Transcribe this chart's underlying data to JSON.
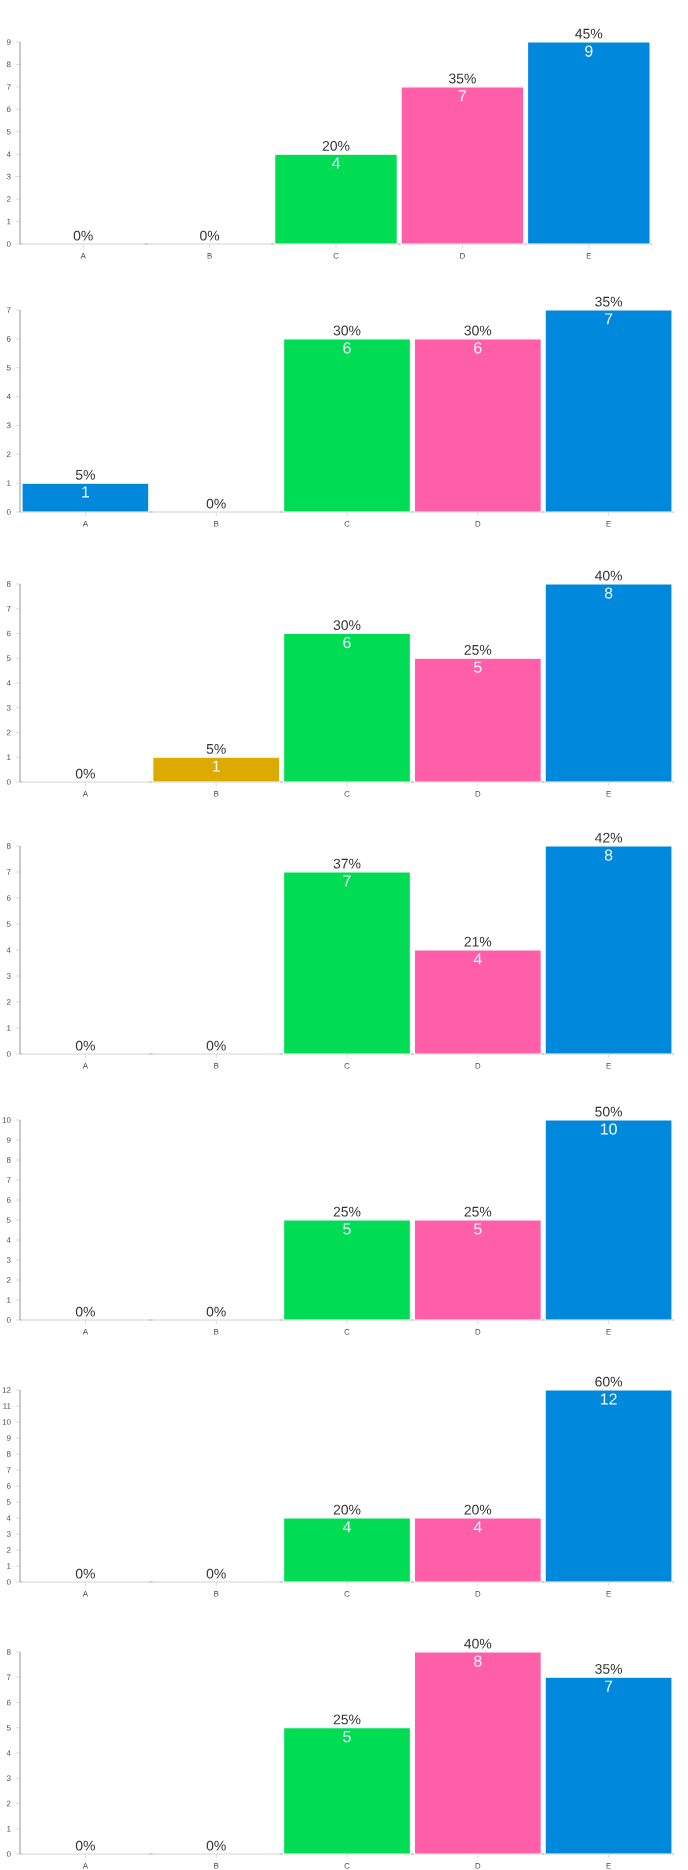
{
  "chart_data": [
    {
      "type": "bar",
      "categories": [
        "A",
        "B",
        "C",
        "D",
        "E"
      ],
      "values": [
        0,
        0,
        4,
        7,
        9
      ],
      "colors": [
        "#0088dd",
        "#ddaa00",
        "#00dd55",
        "#ff5fa8",
        "#0088dd"
      ],
      "value_labels": [
        null,
        null,
        "4",
        "7",
        "9"
      ],
      "ylim": [
        0,
        9
      ],
      "yticks": [
        0,
        1,
        2,
        3,
        4,
        5,
        6,
        7,
        8,
        9
      ],
      "annotations": [
        {
          "text": "0%",
          "x": "A",
          "y": 0
        },
        {
          "text": "0%",
          "x": "B",
          "y": 0
        },
        {
          "text": "20%",
          "x": "C",
          "y": 4
        },
        {
          "text": "35%",
          "x": "D",
          "y": 7
        },
        {
          "text": "45%",
          "x": "E",
          "y": 9
        }
      ]
    },
    {
      "type": "bar",
      "categories": [
        "A",
        "B",
        "C",
        "D",
        "E"
      ],
      "values": [
        1,
        0,
        6,
        6,
        7
      ],
      "colors": [
        "#0088dd",
        "#ddaa00",
        "#00dd55",
        "#ff5fa8",
        "#0088dd"
      ],
      "value_labels": [
        "1",
        null,
        "6",
        "6",
        "7"
      ],
      "ylim": [
        0,
        7
      ],
      "yticks": [
        0,
        1,
        2,
        3,
        4,
        5,
        6,
        7
      ],
      "annotations": [
        {
          "text": "5%",
          "x": "A",
          "y": 1
        },
        {
          "text": "0%",
          "x": "B",
          "y": 0
        },
        {
          "text": "30%",
          "x": "C",
          "y": 6
        },
        {
          "text": "30%",
          "x": "D",
          "y": 6
        },
        {
          "text": "35%",
          "x": "E",
          "y": 7
        }
      ]
    },
    {
      "type": "bar",
      "categories": [
        "A",
        "B",
        "C",
        "D",
        "E"
      ],
      "values": [
        0,
        1,
        6,
        5,
        8
      ],
      "colors": [
        "#0088dd",
        "#ddaa00",
        "#00dd55",
        "#ff5fa8",
        "#0088dd"
      ],
      "value_labels": [
        null,
        "1",
        "6",
        "5",
        "8"
      ],
      "ylim": [
        0,
        8
      ],
      "yticks": [
        0,
        1,
        2,
        3,
        4,
        5,
        6,
        7,
        8
      ],
      "annotations": [
        {
          "text": "0%",
          "x": "A",
          "y": 0
        },
        {
          "text": "5%",
          "x": "B",
          "y": 1
        },
        {
          "text": "30%",
          "x": "C",
          "y": 6
        },
        {
          "text": "25%",
          "x": "D",
          "y": 5
        },
        {
          "text": "40%",
          "x": "E",
          "y": 8
        }
      ]
    },
    {
      "type": "bar",
      "categories": [
        "A",
        "B",
        "C",
        "D",
        "E"
      ],
      "values": [
        0,
        0,
        7,
        4,
        8
      ],
      "colors": [
        "#0088dd",
        "#ddaa00",
        "#00dd55",
        "#ff5fa8",
        "#0088dd"
      ],
      "value_labels": [
        null,
        null,
        "7",
        "4",
        "8"
      ],
      "ylim": [
        0,
        8
      ],
      "yticks": [
        0,
        1,
        2,
        3,
        4,
        5,
        6,
        7,
        8
      ],
      "annotations": [
        {
          "text": "0%",
          "x": "A",
          "y": 0
        },
        {
          "text": "0%",
          "x": "B",
          "y": 0
        },
        {
          "text": "37%",
          "x": "C",
          "y": 7
        },
        {
          "text": "21%",
          "x": "D",
          "y": 4
        },
        {
          "text": "42%",
          "x": "E",
          "y": 8
        }
      ]
    },
    {
      "type": "bar",
      "categories": [
        "A",
        "B",
        "C",
        "D",
        "E"
      ],
      "values": [
        0,
        0,
        5,
        5,
        10
      ],
      "colors": [
        "#0088dd",
        "#ddaa00",
        "#00dd55",
        "#ff5fa8",
        "#0088dd"
      ],
      "value_labels": [
        null,
        null,
        "5",
        "5",
        "10"
      ],
      "ylim": [
        0,
        10
      ],
      "yticks": [
        0,
        1,
        2,
        3,
        4,
        5,
        6,
        7,
        8,
        9,
        10
      ],
      "annotations": [
        {
          "text": "0%",
          "x": "A",
          "y": 0
        },
        {
          "text": "0%",
          "x": "B",
          "y": 0
        },
        {
          "text": "25%",
          "x": "C",
          "y": 5
        },
        {
          "text": "25%",
          "x": "D",
          "y": 5
        },
        {
          "text": "50%",
          "x": "E",
          "y": 10
        }
      ]
    },
    {
      "type": "bar",
      "categories": [
        "A",
        "B",
        "C",
        "D",
        "E"
      ],
      "values": [
        0,
        0,
        4,
        4,
        12
      ],
      "colors": [
        "#0088dd",
        "#ddaa00",
        "#00dd55",
        "#ff5fa8",
        "#0088dd"
      ],
      "value_labels": [
        null,
        null,
        "4",
        "4",
        "12"
      ],
      "ylim": [
        0,
        12
      ],
      "yticks": [
        0,
        1,
        2,
        3,
        4,
        5,
        6,
        7,
        8,
        9,
        10,
        11,
        12
      ],
      "annotations": [
        {
          "text": "0%",
          "x": "A",
          "y": 0
        },
        {
          "text": "0%",
          "x": "B",
          "y": 0
        },
        {
          "text": "20%",
          "x": "C",
          "y": 4
        },
        {
          "text": "20%",
          "x": "D",
          "y": 4
        },
        {
          "text": "60%",
          "x": "E",
          "y": 12
        }
      ]
    },
    {
      "type": "bar",
      "categories": [
        "A",
        "B",
        "C",
        "D",
        "E"
      ],
      "values": [
        0,
        0,
        5,
        8,
        7
      ],
      "colors": [
        "#0088dd",
        "#ddaa00",
        "#00dd55",
        "#ff5fa8",
        "#0088dd"
      ],
      "value_labels": [
        null,
        null,
        "5",
        "8",
        "7"
      ],
      "ylim": [
        0,
        8
      ],
      "yticks": [
        0,
        1,
        2,
        3,
        4,
        5,
        6,
        7,
        8
      ],
      "annotations": [
        {
          "text": "0%",
          "x": "A",
          "y": 0
        },
        {
          "text": "0%",
          "x": "B",
          "y": 0
        },
        {
          "text": "25%",
          "x": "C",
          "y": 5
        },
        {
          "text": "40%",
          "x": "D",
          "y": 8
        },
        {
          "text": "35%",
          "x": "E",
          "y": 7
        }
      ]
    }
  ]
}
